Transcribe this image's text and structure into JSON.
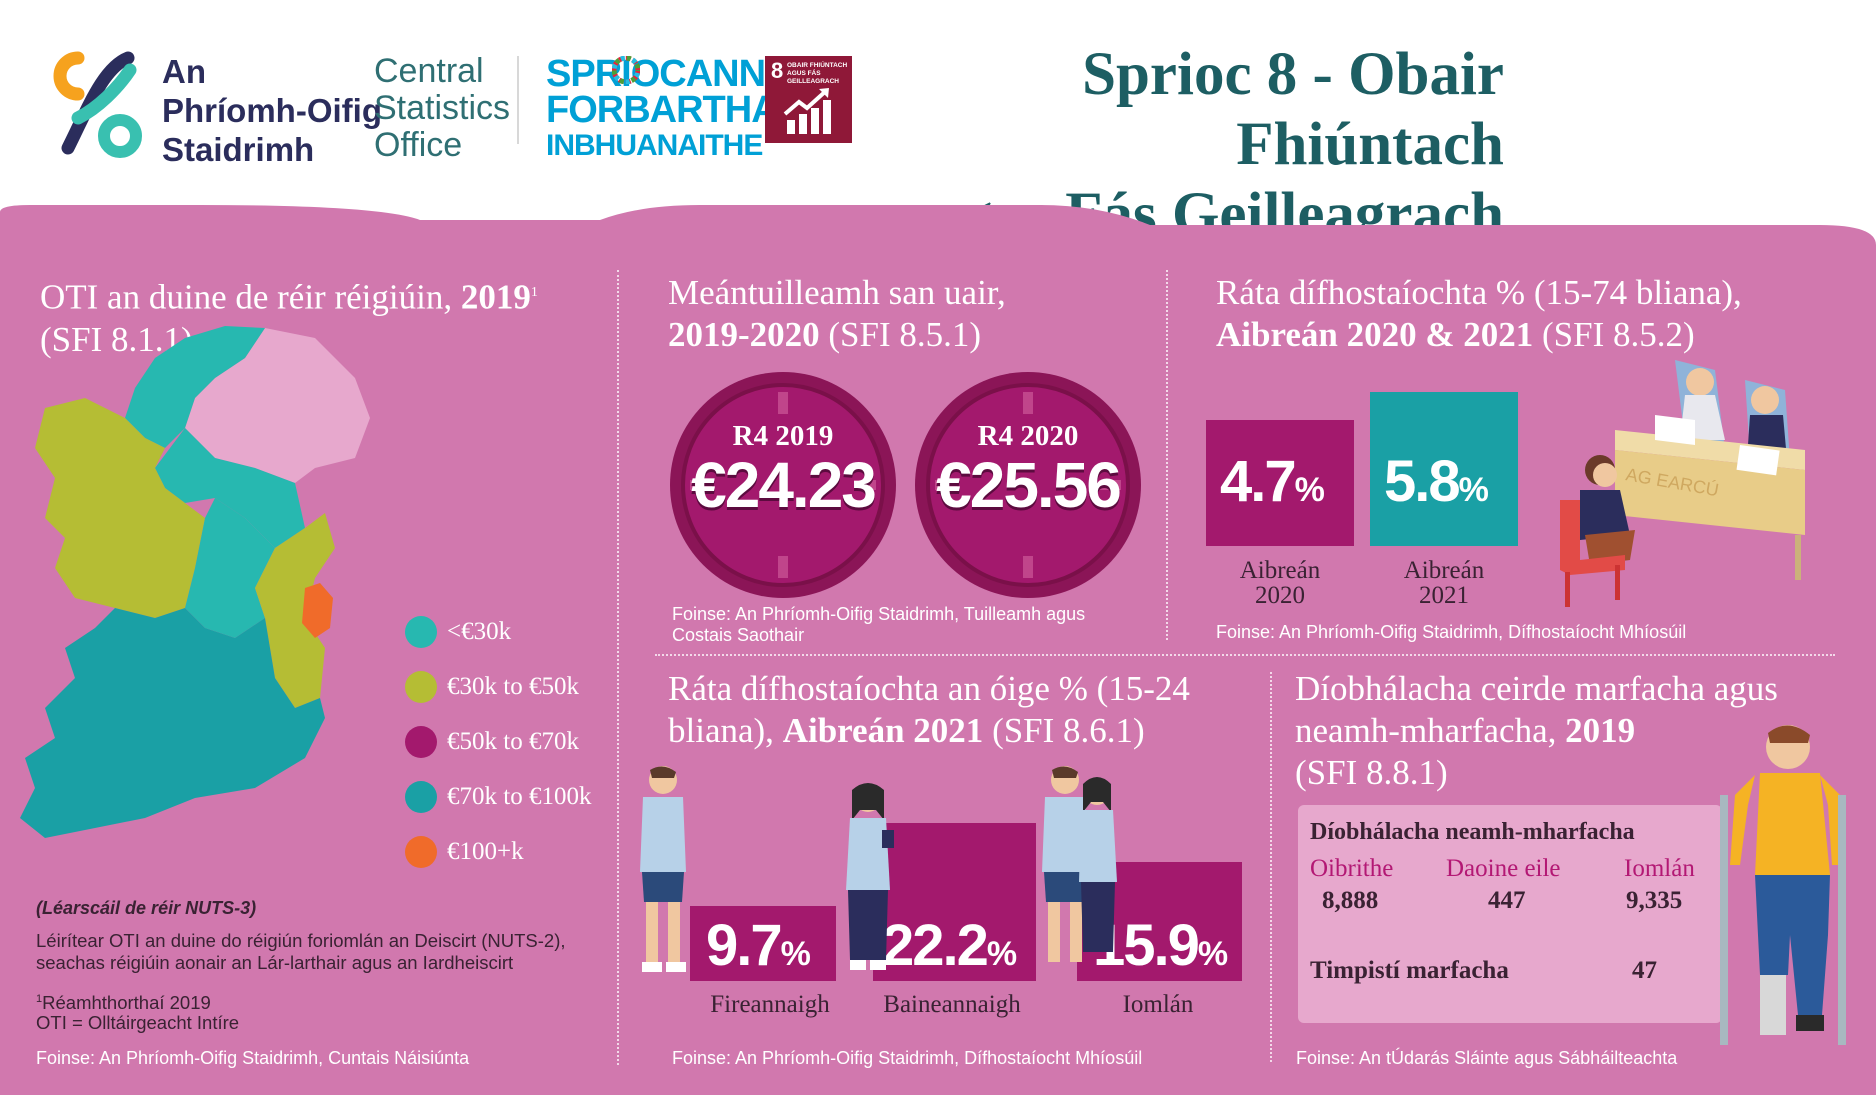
{
  "header": {
    "cso_irish": [
      "An",
      "Phríomh-Oifig",
      "Staidrimh"
    ],
    "cso_english": [
      "Central",
      "Statistics",
      "Office"
    ],
    "sdg_logo": [
      "SPRIOCANNA",
      "FORBARTHA",
      "INBHUANAITHE"
    ],
    "goal_number": "8",
    "goal_badge_text": "OBAIR FHIÚNTACH AGUS FÁS GEILLEAGRACH",
    "title_line1": "Sprioc 8 - Obair Fhiúntach",
    "title_line2": "agus Fás Geilleagrach",
    "colors": {
      "title": "#1d5e63",
      "panel": "#d178ae",
      "badge": "#8f1838",
      "sdg_blue": "#00a0d6"
    }
  },
  "map_panel": {
    "title_line1": "OTI an duine de réir réigiúin,",
    "title_year": "2019",
    "title_sup": "1",
    "title_line2": "(SFI 8.1.1)",
    "legend": [
      {
        "label": "<€30k",
        "color": "#27b8b0"
      },
      {
        "label": "€30k to €50k",
        "color": "#b5bd34"
      },
      {
        "label": "€50k to €70k",
        "color": "#a3196d"
      },
      {
        "label": "€70k to €100k",
        "color": "#1aa0a5"
      },
      {
        "label": "€100+k",
        "color": "#f06b2a"
      }
    ],
    "map_note": "(Léarscáil de réir NUTS-3)",
    "explain_line1": "Léirítear OTI an duine do réigiún foriomlán an Deiscirt (NUTS-2),",
    "explain_line2": "seachas réigiúin aonair an Lár-larthair agus an Iardheiscirt",
    "footnote_sup": "1",
    "footnote": "Réamhthorthaí 2019",
    "abbrev": "OTI = Olltáirgeacht Intíre",
    "source": "Foinse: An Phríomh-Oifig Staidrimh, Cuntais Náisiúnta"
  },
  "earnings_panel": {
    "title_line1": "Meántuilleamh san uair,",
    "title_bold": "2019-2020",
    "title_rest": "(SFI 8.5.1)",
    "clocks": [
      {
        "label": "R4 2019",
        "value": "€24.23"
      },
      {
        "label": "R4 2020",
        "value": "€25.56"
      }
    ],
    "source_line1": "Foinse: An Phríomh-Oifig Staidrimh, Tuilleamh agus",
    "source_line2": "Costais Saothair"
  },
  "unemployment_panel": {
    "title_line1": "Ráta dífhostaíochta % (15-74 bliana),",
    "title_bold": "Aibreán 2020 & 2021",
    "title_rest": "(SFI 8.5.2)",
    "items": [
      {
        "value": "4.7",
        "unit": "%",
        "cap1": "Aibreán",
        "cap2": "2020",
        "color": "#a3196d"
      },
      {
        "value": "5.8",
        "unit": "%",
        "cap1": "Aibreán",
        "cap2": "2021",
        "color": "#1aa0a5"
      }
    ],
    "desk_sign": "AG EARCÚ",
    "source": "Foinse: An Phríomh-Oifig Staidrimh, Dífhostaíocht Mhíosúil"
  },
  "youth_panel": {
    "title_line1": "Ráta dífhostaíochta an óige % (15-24",
    "title_line2_start": "bliana),",
    "title_bold": "Aibreán 2021",
    "title_rest": "(SFI 8.6.1)",
    "bars": [
      {
        "value": "9.7",
        "unit": "%",
        "label": "Fireannaigh"
      },
      {
        "value": "22.2",
        "unit": "%",
        "label": "Baineannaigh"
      },
      {
        "value": "15.9",
        "unit": "%",
        "label": "Iomlán"
      }
    ],
    "source": "Foinse: An Phríomh-Oifig Staidrimh, Dífhostaíocht Mhíosúil"
  },
  "injury_panel": {
    "title_line1": "Díobhálacha ceirde marfacha agus",
    "title_line2": "neamh-mharfacha,",
    "title_bold": "2019",
    "title_line3": "(SFI 8.8.1)",
    "table_title": "Díobhálacha neamh-mharfacha",
    "columns": [
      "Oibrithe",
      "Daoine eile",
      "Iomlán"
    ],
    "values": [
      "8,888",
      "447",
      "9,335"
    ],
    "fatal_label": "Timpistí marfacha",
    "fatal_value": "47",
    "source": "Foinse: An tÚdarás Sláinte agus Sábháilteachta"
  }
}
